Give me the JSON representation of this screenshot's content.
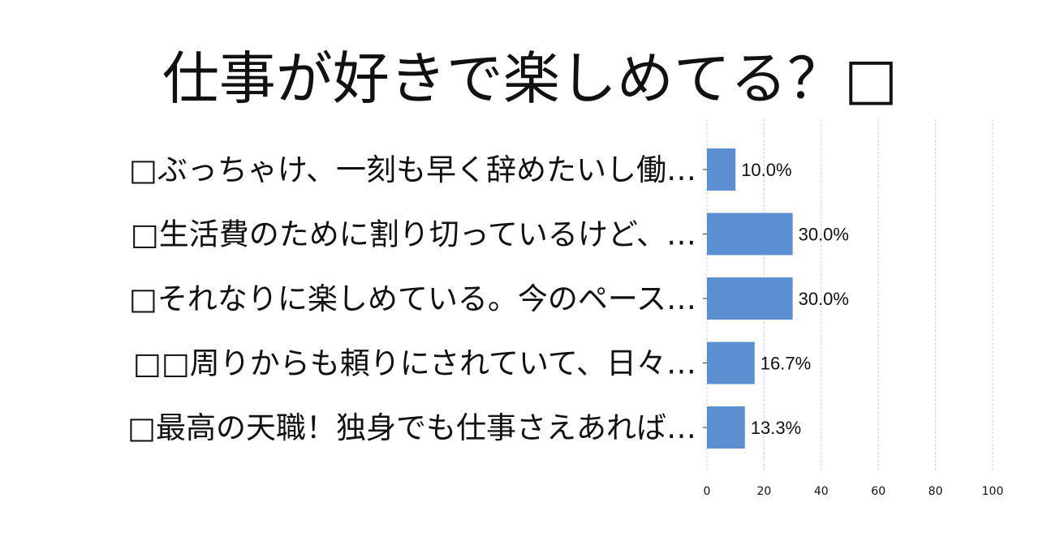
{
  "chart_data": {
    "type": "bar",
    "orientation": "horizontal",
    "title": "仕事が好きで楽しめてる？",
    "title_suffix_glyph": "□",
    "categories": [
      "□ぶっちゃけ、一刻も早く辞めたいし働…",
      "□生活費のために割り切っているけど、…",
      "□それなりに楽しめている。今のペース…",
      "□□周りからも頼りにされていて、日々…",
      "□最高の天職！独身でも仕事さえあれば…"
    ],
    "values": [
      10.0,
      30.0,
      30.0,
      16.7,
      13.3
    ],
    "value_labels": [
      "10.0%",
      "30.0%",
      "30.0%",
      "16.7%",
      "13.3%"
    ],
    "xlim": [
      0,
      100
    ],
    "xticks": [
      0,
      20,
      40,
      60,
      80,
      100
    ],
    "xtick_labels": [
      "0",
      "20",
      "40",
      "60",
      "80",
      "100"
    ],
    "xlabel": "",
    "ylabel": "",
    "grid": true,
    "bar_color": "#5b8fd1"
  }
}
